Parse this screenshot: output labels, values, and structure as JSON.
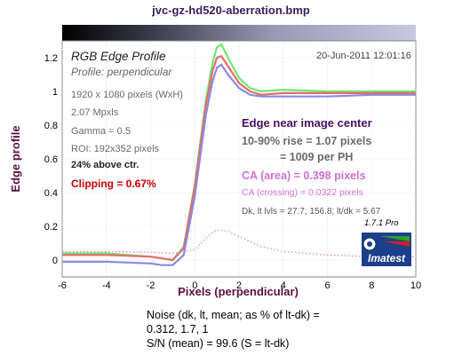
{
  "title": "jvc-gz-hd520-aberration.bmp",
  "panel": {
    "heading": "RGB Edge Profile",
    "subheading": "Profile: perpendicular",
    "date": "20-Jun-2011 12:01:16",
    "info_lines": [
      "1920 x 1080 pixels (WxH)",
      "2.07 Mpxls",
      "Gamma = 0.5",
      "ROI: 192x352 pixels"
    ],
    "above_ctr": "24% above ctr.",
    "clipping": "Clipping =   0.67%",
    "edge_location": "Edge near image center",
    "rise": "10-90% rise = 1.07 pixels",
    "per_ph": "= 1009 per PH",
    "ca_area": "CA (area) = 0.398 pixels",
    "ca_crossing": "CA (crossing) = 0.0322 pixels",
    "dk_levels": "Dk, lt lvls = 27.7, 156.8;  lt/dk = 5.67",
    "version": "1.7.1  Pro",
    "logo_text": "Imatest"
  },
  "noise": {
    "line1": "Noise (dk, lt, mean; as % of lt-dk) =",
    "line2": "0.312,  1.7,  1",
    "line3": "S/N (mean) = 99.6  (S = lt-dk)"
  },
  "colors": {
    "red": "#e86a6a",
    "green": "#6ee86e",
    "blue": "#8a8ae0",
    "ca": "#e08ae0",
    "title": "#3a1e5c",
    "axis_label": "#5a1040",
    "clip": "#cc0000",
    "edge": "#4a1060"
  },
  "chart_data": {
    "type": "line",
    "xlabel": "Pixels (perpendicular)",
    "ylabel": "Edge profile",
    "xlim": [
      -6,
      10
    ],
    "ylim": [
      -0.1,
      1.3
    ],
    "xticks": [
      -6,
      -4,
      -2,
      0,
      2,
      4,
      6,
      8,
      10
    ],
    "yticks": [
      0,
      0.2,
      0.4,
      0.6,
      0.8,
      1,
      1.2
    ],
    "grid": true,
    "series": [
      {
        "color": "green",
        "x": [
          -6,
          -4,
          -2,
          -1.5,
          -1,
          -0.5,
          0,
          0.5,
          0.8,
          1,
          1.2,
          1.5,
          2,
          2.5,
          3,
          4,
          6,
          8,
          10
        ],
        "y": [
          0.04,
          0.04,
          0.02,
          0.01,
          0.0,
          0.08,
          0.45,
          0.95,
          1.17,
          1.26,
          1.28,
          1.2,
          1.08,
          1.02,
          1.0,
          1.01,
          1.0,
          1.0,
          1.0
        ]
      },
      {
        "color": "red",
        "x": [
          -6,
          -4,
          -2,
          -1.5,
          -1,
          -0.5,
          0,
          0.5,
          0.8,
          1,
          1.2,
          1.5,
          2,
          2.5,
          3,
          4,
          6,
          8,
          10
        ],
        "y": [
          0.03,
          0.03,
          0.02,
          0.01,
          0.0,
          0.07,
          0.44,
          0.92,
          1.12,
          1.2,
          1.21,
          1.15,
          1.05,
          1.0,
          0.98,
          0.99,
          0.99,
          0.99,
          0.99
        ]
      },
      {
        "color": "blue",
        "x": [
          -6,
          -4,
          -2,
          -1.5,
          -1,
          -0.5,
          0,
          0.5,
          0.8,
          1,
          1.2,
          1.5,
          2,
          2.5,
          3,
          4,
          6,
          8,
          10
        ],
        "y": [
          -0.01,
          -0.01,
          -0.02,
          -0.03,
          -0.03,
          0.03,
          0.38,
          0.86,
          1.06,
          1.14,
          1.16,
          1.1,
          1.02,
          0.98,
          0.97,
          0.97,
          0.97,
          0.98,
          0.98
        ]
      },
      {
        "color": "ca",
        "dotted": true,
        "x": [
          -6,
          -3,
          -1,
          0,
          0.5,
          1,
          1.5,
          2,
          3,
          4,
          5,
          6,
          8,
          10
        ],
        "y": [
          0.05,
          0.05,
          0.04,
          0.06,
          0.13,
          0.18,
          0.17,
          0.14,
          0.08,
          0.05,
          0.04,
          0.03,
          0.02,
          0.02
        ]
      }
    ]
  }
}
